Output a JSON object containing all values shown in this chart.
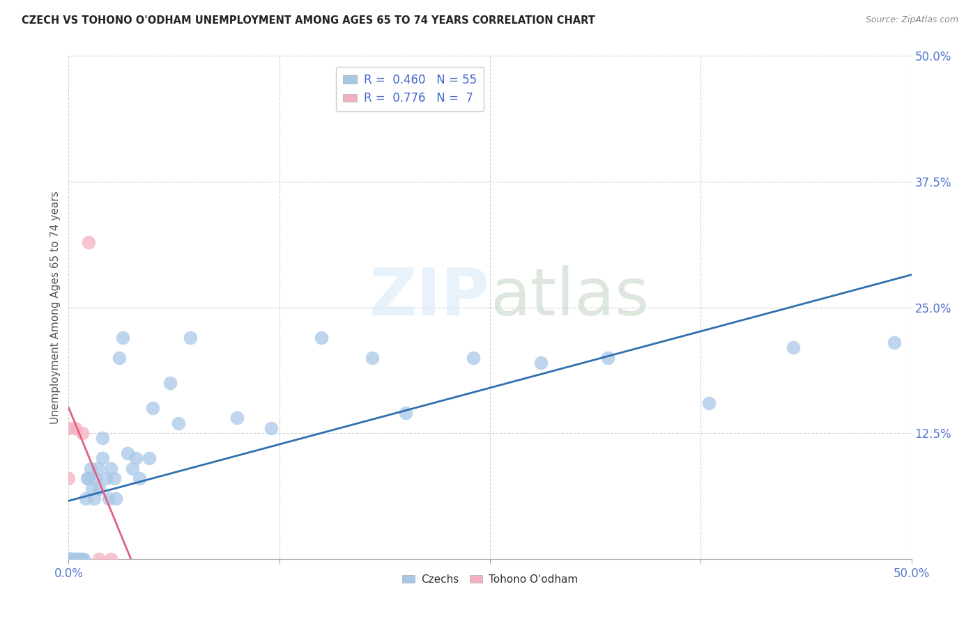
{
  "title": "CZECH VS TOHONO O'ODHAM UNEMPLOYMENT AMONG AGES 65 TO 74 YEARS CORRELATION CHART",
  "source": "Source: ZipAtlas.com",
  "ylabel": "Unemployment Among Ages 65 to 74 years",
  "xlim": [
    0,
    0.5
  ],
  "ylim": [
    0,
    0.5
  ],
  "xticks": [
    0.0,
    0.125,
    0.25,
    0.375,
    0.5
  ],
  "yticks": [
    0.0,
    0.125,
    0.25,
    0.375,
    0.5
  ],
  "xticklabels": [
    "0.0%",
    "",
    "",
    "",
    "50.0%"
  ],
  "yticklabels": [
    "",
    "12.5%",
    "25.0%",
    "37.5%",
    "50.0%"
  ],
  "czech_R": 0.46,
  "czech_N": 55,
  "tohono_R": 0.776,
  "tohono_N": 7,
  "czech_color": "#a8c8e8",
  "tohono_color": "#f4b0c0",
  "czech_line_color": "#3070b0",
  "tohono_line_color": "#e06080",
  "background_color": "#ffffff",
  "czech_x": [
    0.0,
    0.0,
    0.0,
    0.0,
    0.0,
    0.0,
    0.001,
    0.001,
    0.002,
    0.002,
    0.003,
    0.004,
    0.005,
    0.006,
    0.007,
    0.008,
    0.009,
    0.01,
    0.011,
    0.012,
    0.013,
    0.014,
    0.015,
    0.016,
    0.017,
    0.018,
    0.02,
    0.02,
    0.022,
    0.024,
    0.025,
    0.027,
    0.028,
    0.03,
    0.032,
    0.035,
    0.038,
    0.04,
    0.042,
    0.048,
    0.05,
    0.06,
    0.065,
    0.072,
    0.1,
    0.12,
    0.15,
    0.18,
    0.2,
    0.24,
    0.28,
    0.32,
    0.38,
    0.43,
    0.49
  ],
  "czech_y": [
    0.0,
    0.0,
    0.0,
    0.0,
    0.0,
    0.0,
    0.0,
    0.0,
    0.0,
    0.0,
    0.0,
    0.0,
    0.0,
    0.0,
    0.0,
    0.0,
    0.0,
    0.06,
    0.08,
    0.08,
    0.09,
    0.07,
    0.06,
    0.08,
    0.09,
    0.07,
    0.1,
    0.12,
    0.08,
    0.06,
    0.09,
    0.08,
    0.06,
    0.2,
    0.22,
    0.105,
    0.09,
    0.1,
    0.08,
    0.1,
    0.15,
    0.175,
    0.135,
    0.22,
    0.14,
    0.13,
    0.22,
    0.2,
    0.145,
    0.2,
    0.195,
    0.2,
    0.155,
    0.21,
    0.215
  ],
  "tohono_x": [
    0.0,
    0.0,
    0.004,
    0.008,
    0.012,
    0.018,
    0.025
  ],
  "tohono_y": [
    0.08,
    0.13,
    0.13,
    0.125,
    0.315,
    0.0,
    0.0
  ]
}
